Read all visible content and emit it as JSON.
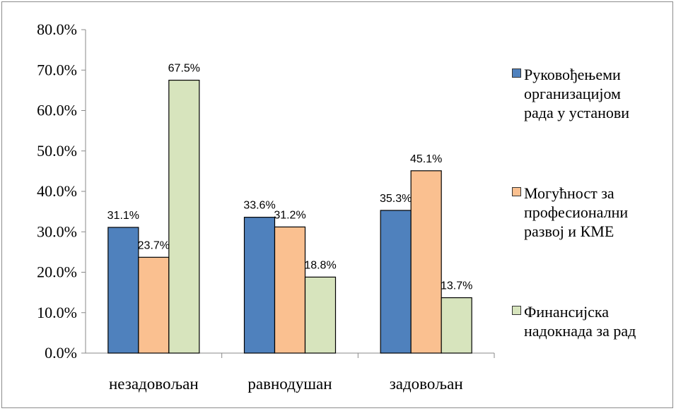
{
  "chart_data": {
    "type": "bar",
    "categories": [
      "незадовољан",
      "равнодушан",
      "задовољан"
    ],
    "series": [
      {
        "name": "Руковођењеми организацијом рада у установи",
        "values": [
          31.1,
          33.6,
          35.3
        ],
        "labels": [
          "31.1%",
          "33.6%",
          "35.3%"
        ],
        "color": "#4f81bd"
      },
      {
        "name": "Могућност за професионални развој и КМЕ",
        "values": [
          23.7,
          31.2,
          45.1
        ],
        "labels": [
          "23.7%",
          "31.2%",
          "45.1%"
        ],
        "color": "#fac090"
      },
      {
        "name": "Финансијска надокнада за рад",
        "values": [
          67.5,
          18.8,
          13.7
        ],
        "labels": [
          "67.5%",
          "18.8%",
          "13.7%"
        ],
        "color": "#d7e4bd"
      }
    ],
    "ylim": [
      0,
      80
    ],
    "yticks": [
      "0.0%",
      "10.0%",
      "20.0%",
      "30.0%",
      "40.0%",
      "50.0%",
      "60.0%",
      "70.0%",
      "80.0%"
    ],
    "legend_position": "right",
    "grid": false
  },
  "legend": [
    {
      "lines": [
        "Руковођењеми",
        "организацијом",
        "рада у установи"
      ],
      "color": "#4f81bd"
    },
    {
      "lines": [
        "Могућност за",
        "професионални",
        "развој и КМЕ"
      ],
      "color": "#fac090"
    },
    {
      "lines": [
        "Финансијска",
        "надокнада за рад"
      ],
      "color": "#d7e4bd"
    }
  ]
}
